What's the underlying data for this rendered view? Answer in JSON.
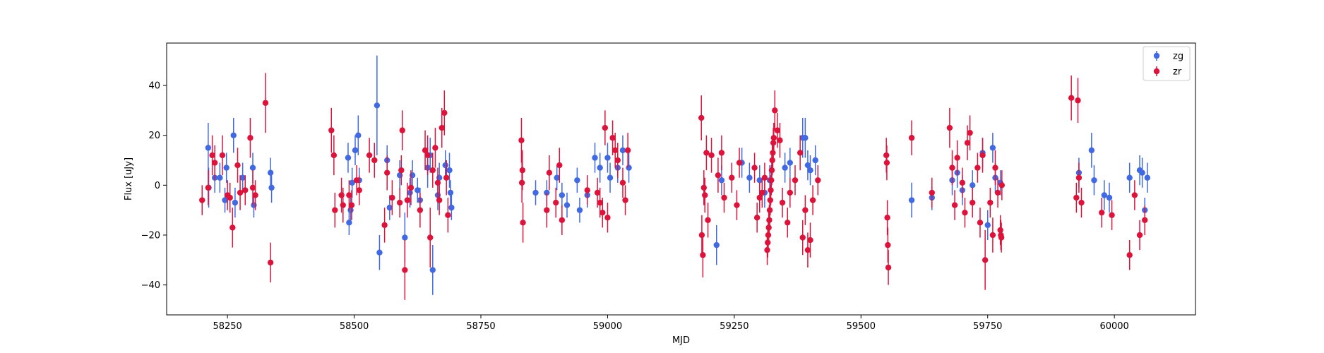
{
  "chart_data": {
    "type": "scatter",
    "title": "",
    "xlabel": "MJD",
    "ylabel": "Flux [uJy]",
    "xlim": [
      58130,
      60160
    ],
    "ylim": [
      -52,
      57
    ],
    "xticks": [
      58250,
      58500,
      58750,
      59000,
      59250,
      59500,
      59750,
      60000
    ],
    "yticks": [
      -40,
      -20,
      0,
      20,
      40
    ],
    "grid": false,
    "legend_position": "top-right",
    "series": [
      {
        "name": "zg",
        "color": "#4169e1",
        "points": [
          [
            58212,
            15,
            10
          ],
          [
            58213,
            -1,
            8
          ],
          [
            58225,
            3,
            6
          ],
          [
            58235,
            3,
            6
          ],
          [
            58245,
            -6,
            5
          ],
          [
            58248,
            7,
            6
          ],
          [
            58262,
            20,
            7
          ],
          [
            58265,
            -7,
            6
          ],
          [
            58280,
            3,
            6
          ],
          [
            58300,
            7,
            6
          ],
          [
            58302,
            -8,
            5
          ],
          [
            58335,
            5,
            6
          ],
          [
            58337,
            -1,
            6
          ],
          [
            58488,
            11,
            6
          ],
          [
            58490,
            -15,
            5
          ],
          [
            58493,
            -10,
            5
          ],
          [
            58496,
            1,
            6
          ],
          [
            58502,
            14,
            6
          ],
          [
            58508,
            20,
            8
          ],
          [
            58510,
            2,
            5
          ],
          [
            58545,
            32,
            20
          ],
          [
            58550,
            -27,
            7
          ],
          [
            58565,
            10,
            6
          ],
          [
            58570,
            -9,
            5
          ],
          [
            58590,
            4,
            6
          ],
          [
            58600,
            -21,
            10
          ],
          [
            58610,
            -3,
            6
          ],
          [
            58615,
            4,
            6
          ],
          [
            58625,
            -2,
            5
          ],
          [
            58630,
            -6,
            5
          ],
          [
            58645,
            7,
            8
          ],
          [
            58650,
            12,
            7
          ],
          [
            58655,
            -34,
            10
          ],
          [
            58665,
            -4,
            6
          ],
          [
            58668,
            3,
            6
          ],
          [
            58680,
            8,
            6
          ],
          [
            58688,
            6,
            7
          ],
          [
            58690,
            -3,
            5
          ],
          [
            58692,
            -9,
            5
          ],
          [
            58858,
            -3,
            5
          ],
          [
            58880,
            -3,
            5
          ],
          [
            58900,
            3,
            5
          ],
          [
            58910,
            -4,
            5
          ],
          [
            58920,
            -8,
            5
          ],
          [
            58940,
            2,
            5
          ],
          [
            58945,
            -10,
            5
          ],
          [
            58960,
            -4,
            5
          ],
          [
            58975,
            11,
            6
          ],
          [
            58985,
            7,
            6
          ],
          [
            59000,
            11,
            6
          ],
          [
            59005,
            3,
            6
          ],
          [
            59020,
            7,
            6
          ],
          [
            59030,
            14,
            6
          ],
          [
            59042,
            7,
            6
          ],
          [
            59215,
            -24,
            8
          ],
          [
            59225,
            2,
            6
          ],
          [
            59265,
            9,
            6
          ],
          [
            59280,
            3,
            6
          ],
          [
            59300,
            2,
            6
          ],
          [
            59310,
            -3,
            6
          ],
          [
            59320,
            2,
            6
          ],
          [
            59350,
            7,
            6
          ],
          [
            59360,
            9,
            6
          ],
          [
            59385,
            19,
            8
          ],
          [
            59390,
            19,
            8
          ],
          [
            59395,
            8,
            6
          ],
          [
            59400,
            6,
            6
          ],
          [
            59410,
            10,
            6
          ],
          [
            59600,
            -6,
            7
          ],
          [
            59640,
            -5,
            5
          ],
          [
            59680,
            2,
            6
          ],
          [
            59690,
            5,
            6
          ],
          [
            59700,
            -2,
            6
          ],
          [
            59720,
            0,
            6
          ],
          [
            59740,
            13,
            6
          ],
          [
            59750,
            -16,
            6
          ],
          [
            59760,
            15,
            6
          ],
          [
            59765,
            3,
            6
          ],
          [
            59775,
            1,
            5
          ],
          [
            59930,
            5,
            6
          ],
          [
            59955,
            14,
            7
          ],
          [
            59960,
            2,
            6
          ],
          [
            59980,
            -4,
            6
          ],
          [
            59990,
            -5,
            6
          ],
          [
            60030,
            3,
            6
          ],
          [
            60050,
            6,
            6
          ],
          [
            60055,
            5,
            6
          ],
          [
            60060,
            -10,
            5
          ],
          [
            60065,
            3,
            6
          ]
        ]
      },
      {
        "name": "zr",
        "color": "#dc143c",
        "points": [
          [
            58200,
            -6,
            6
          ],
          [
            58212,
            -1,
            7
          ],
          [
            58220,
            12,
            8
          ],
          [
            58225,
            9,
            7
          ],
          [
            58240,
            12,
            8
          ],
          [
            58250,
            -4,
            6
          ],
          [
            58255,
            -5,
            6
          ],
          [
            58260,
            -17,
            8
          ],
          [
            58270,
            8,
            7
          ],
          [
            58275,
            -3,
            7
          ],
          [
            58285,
            -2,
            6
          ],
          [
            58295,
            19,
            8
          ],
          [
            58300,
            -1,
            7
          ],
          [
            58305,
            -4,
            6
          ],
          [
            58325,
            33,
            12
          ],
          [
            58335,
            -31,
            8
          ],
          [
            58455,
            22,
            9
          ],
          [
            58460,
            12,
            8
          ],
          [
            58462,
            -10,
            7
          ],
          [
            58475,
            -4,
            7
          ],
          [
            58478,
            -8,
            7
          ],
          [
            58490,
            -4,
            6
          ],
          [
            58495,
            -8,
            6
          ],
          [
            58505,
            2,
            6
          ],
          [
            58510,
            -2,
            6
          ],
          [
            58530,
            12,
            7
          ],
          [
            58540,
            10,
            7
          ],
          [
            58560,
            -16,
            7
          ],
          [
            58565,
            5,
            7
          ],
          [
            58575,
            -5,
            7
          ],
          [
            58590,
            -7,
            6
          ],
          [
            58593,
            6,
            6
          ],
          [
            58595,
            22,
            8
          ],
          [
            58600,
            -34,
            12
          ],
          [
            58605,
            -6,
            7
          ],
          [
            58612,
            -1,
            7
          ],
          [
            58630,
            -10,
            7
          ],
          [
            58640,
            14,
            8
          ],
          [
            58645,
            12,
            8
          ],
          [
            58650,
            -21,
            12
          ],
          [
            58655,
            6,
            7
          ],
          [
            58660,
            15,
            8
          ],
          [
            58665,
            1,
            6
          ],
          [
            58668,
            -6,
            6
          ],
          [
            58673,
            23,
            8
          ],
          [
            58678,
            29,
            9
          ],
          [
            58682,
            3,
            7
          ],
          [
            58685,
            -12,
            7
          ],
          [
            58830,
            18,
            9
          ],
          [
            58831,
            1,
            8
          ],
          [
            58832,
            6,
            8
          ],
          [
            58833,
            -15,
            8
          ],
          [
            58880,
            -10,
            7
          ],
          [
            58885,
            5,
            7
          ],
          [
            58898,
            -7,
            6
          ],
          [
            58905,
            8,
            7
          ],
          [
            58910,
            -14,
            6
          ],
          [
            58960,
            -2,
            6
          ],
          [
            58980,
            -3,
            6
          ],
          [
            58985,
            -7,
            6
          ],
          [
            58990,
            -11,
            6
          ],
          [
            58995,
            23,
            7
          ],
          [
            59000,
            -13,
            6
          ],
          [
            59010,
            19,
            7
          ],
          [
            59015,
            14,
            7
          ],
          [
            59020,
            10,
            7
          ],
          [
            59030,
            1,
            6
          ],
          [
            59035,
            -6,
            6
          ],
          [
            59040,
            14,
            7
          ],
          [
            59185,
            27,
            9
          ],
          [
            59186,
            -20,
            8
          ],
          [
            59188,
            -28,
            9
          ],
          [
            59190,
            -1,
            7
          ],
          [
            59192,
            -4,
            7
          ],
          [
            59195,
            13,
            7
          ],
          [
            59198,
            -14,
            7
          ],
          [
            59205,
            12,
            7
          ],
          [
            59218,
            4,
            7
          ],
          [
            59225,
            13,
            7
          ],
          [
            59230,
            -5,
            6
          ],
          [
            59245,
            3,
            6
          ],
          [
            59255,
            -8,
            6
          ],
          [
            59260,
            9,
            6
          ],
          [
            59290,
            7,
            6
          ],
          [
            59295,
            -13,
            6
          ],
          [
            59300,
            -5,
            6
          ],
          [
            59305,
            -3,
            6
          ],
          [
            59310,
            3,
            6
          ],
          [
            59315,
            -26,
            6
          ],
          [
            59316,
            -23,
            6
          ],
          [
            59317,
            -20,
            6
          ],
          [
            59318,
            -17,
            6
          ],
          [
            59319,
            -14,
            6
          ],
          [
            59320,
            -10,
            6
          ],
          [
            59321,
            -6,
            6
          ],
          [
            59322,
            -2,
            6
          ],
          [
            59323,
            2,
            6
          ],
          [
            59324,
            6,
            6
          ],
          [
            59325,
            10,
            6
          ],
          [
            59326,
            13,
            6
          ],
          [
            59327,
            17,
            6
          ],
          [
            59328,
            19,
            6
          ],
          [
            59330,
            30,
            8
          ],
          [
            59335,
            22,
            7
          ],
          [
            59340,
            18,
            7
          ],
          [
            59345,
            -7,
            6
          ],
          [
            59355,
            -15,
            6
          ],
          [
            59360,
            -3,
            6
          ],
          [
            59370,
            2,
            6
          ],
          [
            59380,
            13,
            7
          ],
          [
            59385,
            -21,
            7
          ],
          [
            59390,
            -10,
            6
          ],
          [
            59395,
            -26,
            7
          ],
          [
            59400,
            -22,
            7
          ],
          [
            59405,
            -6,
            6
          ],
          [
            59415,
            2,
            6
          ],
          [
            59550,
            12,
            7
          ],
          [
            59551,
            9,
            7
          ],
          [
            59552,
            -13,
            7
          ],
          [
            59553,
            -24,
            7
          ],
          [
            59554,
            -33,
            7
          ],
          [
            59600,
            19,
            7
          ],
          [
            59640,
            -3,
            6
          ],
          [
            59675,
            23,
            8
          ],
          [
            59680,
            7,
            7
          ],
          [
            59685,
            -8,
            6
          ],
          [
            59690,
            11,
            7
          ],
          [
            59700,
            1,
            6
          ],
          [
            59705,
            -11,
            6
          ],
          [
            59710,
            17,
            7
          ],
          [
            59715,
            21,
            7
          ],
          [
            59720,
            -7,
            6
          ],
          [
            59730,
            7,
            6
          ],
          [
            59735,
            -15,
            6
          ],
          [
            59740,
            12,
            7
          ],
          [
            59745,
            -30,
            12
          ],
          [
            59755,
            -7,
            6
          ],
          [
            59760,
            -20,
            7
          ],
          [
            59765,
            7,
            7
          ],
          [
            59770,
            -3,
            6
          ],
          [
            59775,
            -18,
            6
          ],
          [
            59776,
            -20,
            6
          ],
          [
            59777,
            -21,
            6
          ],
          [
            59778,
            0,
            6
          ],
          [
            59915,
            35,
            9
          ],
          [
            59925,
            -5,
            6
          ],
          [
            59928,
            34,
            9
          ],
          [
            59930,
            3,
            6
          ],
          [
            59935,
            -7,
            6
          ],
          [
            59975,
            -11,
            6
          ],
          [
            59995,
            -12,
            6
          ],
          [
            60030,
            -28,
            6
          ],
          [
            60040,
            -4,
            6
          ],
          [
            60050,
            -20,
            6
          ],
          [
            60060,
            -14,
            6
          ]
        ]
      }
    ]
  }
}
